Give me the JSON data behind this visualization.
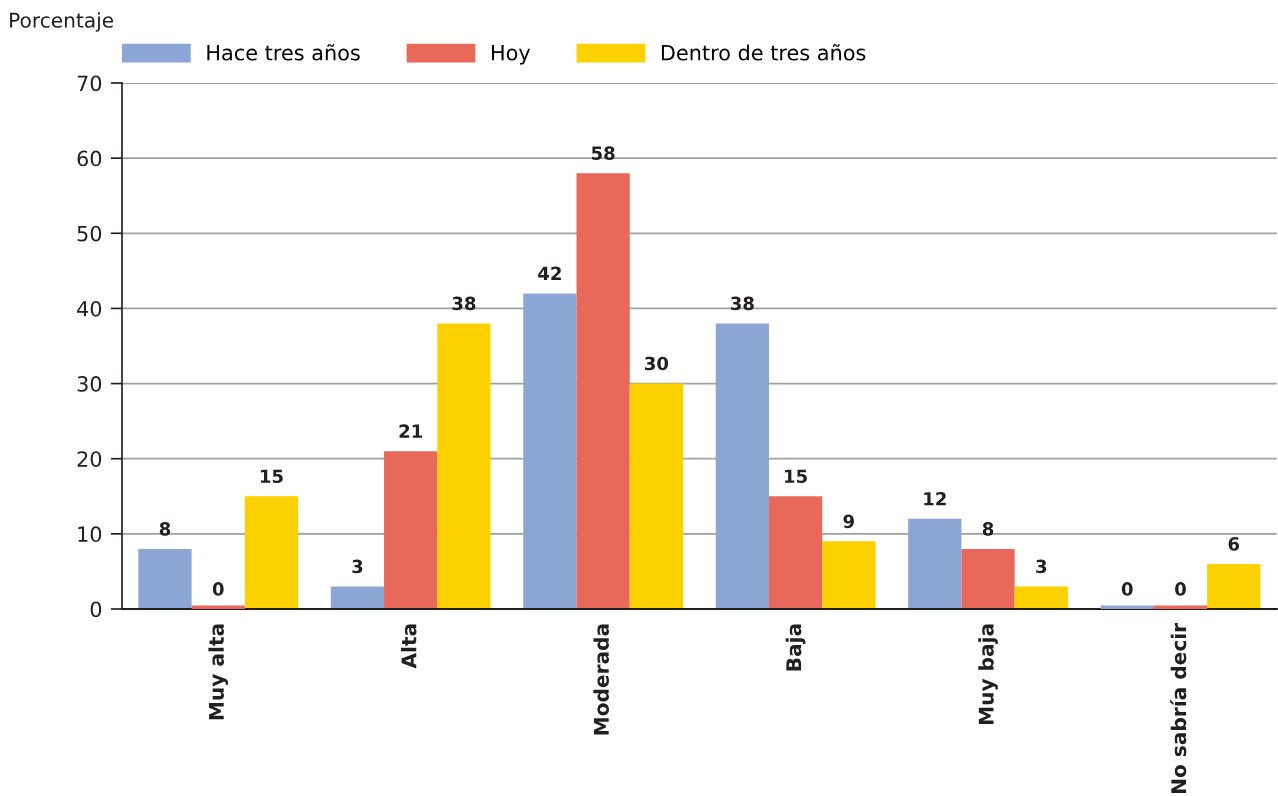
{
  "chart_data": {
    "type": "bar",
    "ylabel": "Porcentaje",
    "categories": [
      "Muy alta",
      "Alta",
      "Moderada",
      "Baja",
      "Muy baja",
      "No sabría decir"
    ],
    "series": [
      {
        "name": "Hace tres años",
        "color": "#8ba5d4",
        "values": [
          8,
          3,
          42,
          38,
          12,
          0
        ]
      },
      {
        "name": "Hoy",
        "color": "#e8695a",
        "values": [
          0,
          21,
          58,
          15,
          8,
          0
        ]
      },
      {
        "name": "Dentro de tres años",
        "color": "#fdd000",
        "values": [
          15,
          38,
          30,
          9,
          3,
          6
        ]
      }
    ],
    "ylim": [
      0,
      70
    ],
    "yticks": [
      0,
      10,
      20,
      30,
      40,
      50,
      60,
      70
    ],
    "grid": "y",
    "legend": "top left",
    "data_labels": true
  }
}
